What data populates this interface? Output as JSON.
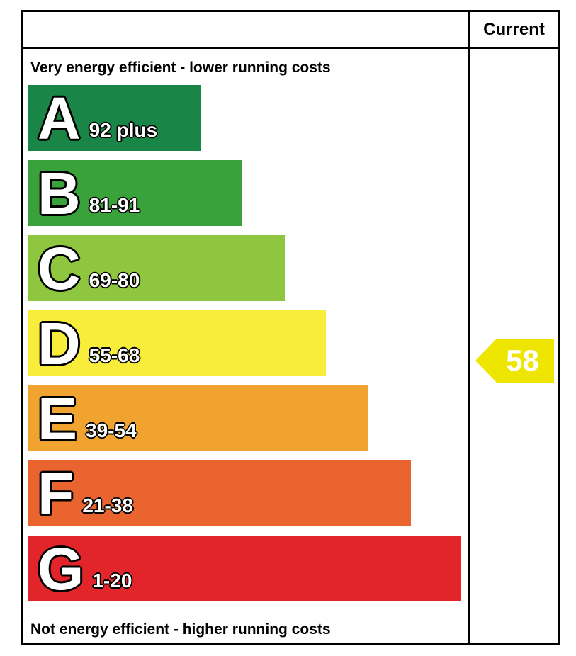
{
  "header": {
    "current_label": "Current"
  },
  "top_label": "Very energy efficient - lower running costs",
  "bottom_label": "Not energy efficient - higher running costs",
  "bands": [
    {
      "letter": "A",
      "range": "92 plus",
      "color": "#198647"
    },
    {
      "letter": "B",
      "range": "81-91",
      "color": "#3aa23a"
    },
    {
      "letter": "C",
      "range": "69-80",
      "color": "#8ec63f"
    },
    {
      "letter": "D",
      "range": "55-68",
      "color": "#f8ed3b"
    },
    {
      "letter": "E",
      "range": "39-54",
      "color": "#f0a32e"
    },
    {
      "letter": "F",
      "range": "21-38",
      "color": "#e9642f"
    },
    {
      "letter": "G",
      "range": "1-20",
      "color": "#e2242b"
    }
  ],
  "current": {
    "value": "58",
    "band": "D",
    "arrow_color": "#eee500",
    "text_color": "#ffffff"
  },
  "chart_data": {
    "type": "bar",
    "title": "Energy efficiency rating chart",
    "categories": [
      "A",
      "B",
      "C",
      "D",
      "E",
      "F",
      "G"
    ],
    "band_ranges": [
      "92 plus",
      "81-91",
      "69-80",
      "55-68",
      "39-54",
      "21-38",
      "1-20"
    ],
    "band_colors": [
      "#198647",
      "#3aa23a",
      "#8ec63f",
      "#f8ed3b",
      "#f0a32e",
      "#e9642f",
      "#e2242b"
    ],
    "bar_relative_lengths": [
      0.4,
      0.5,
      0.59,
      0.69,
      0.79,
      0.89,
      1.0
    ],
    "current_rating": 58,
    "current_band": "D",
    "column_header": "Current",
    "top_annotation": "Very energy efficient - lower running costs",
    "bottom_annotation": "Not energy efficient - higher running costs",
    "legend_position": "none",
    "grid": false
  }
}
